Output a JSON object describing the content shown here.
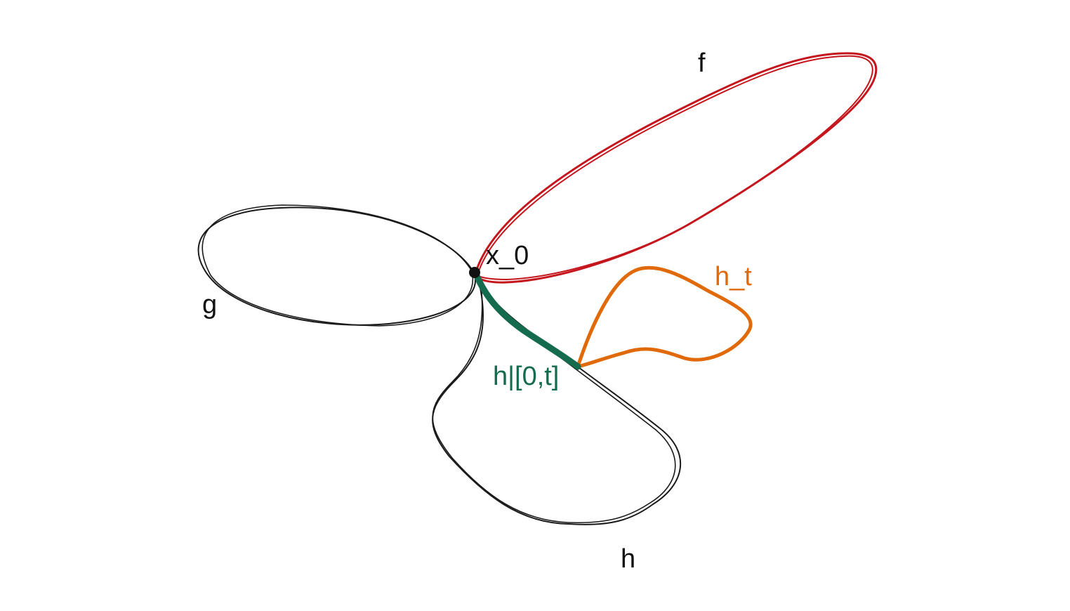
{
  "labels": {
    "f": "f",
    "g": "g",
    "h": "h",
    "x0": "x_0",
    "ht": "h_t",
    "restriction": "h|[0,t]"
  },
  "colors": {
    "background": "#ffffff",
    "loop_f": "#c4161c",
    "loop_g": "#1a1a1a",
    "loop_h": "#1a1a1a",
    "path_ht": "#e06a0a",
    "path_restriction": "#146b4e",
    "point_x0": "#111111",
    "label_default": "#111111"
  },
  "icons": {
    "basepoint": "basepoint-dot"
  }
}
